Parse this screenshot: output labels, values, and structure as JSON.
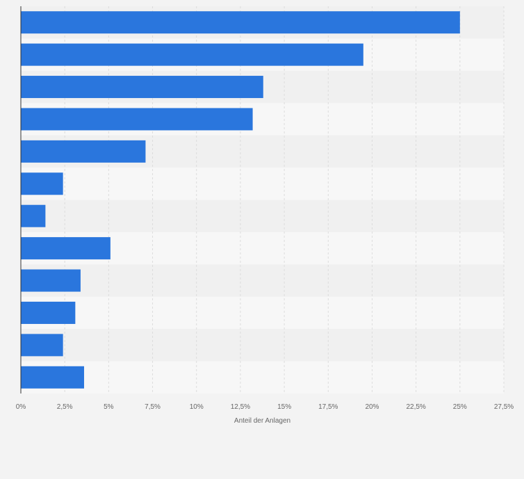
{
  "chart_data": {
    "type": "bar",
    "orientation": "horizontal",
    "title": "",
    "xlabel": "Anteil der Anlagen",
    "ylabel": "",
    "categories": [
      "",
      "",
      "",
      "",
      "",
      "",
      "",
      "",
      "",
      "",
      "",
      ""
    ],
    "values": [
      25.0,
      19.5,
      13.8,
      13.2,
      7.1,
      2.4,
      1.4,
      5.1,
      3.4,
      3.1,
      2.4,
      3.6
    ],
    "xlim": [
      0,
      27.5
    ],
    "xticks": [
      0,
      2.5,
      5,
      7.5,
      10,
      12.5,
      15,
      17.5,
      20,
      22.5,
      25,
      27.5
    ],
    "xtick_labels": [
      "0%",
      "2,5%",
      "5%",
      "7,5%",
      "10%",
      "12,5%",
      "15%",
      "17,5%",
      "20%",
      "22,5%",
      "25%",
      "27,5%"
    ],
    "grid": true,
    "legend": "none",
    "colors": {
      "bar": "#2a76dd",
      "band_dark": "#f0f0f0",
      "band_light": "#f7f7f7",
      "grid": "#dcdcdc",
      "axis": "#333333",
      "text": "#666666"
    }
  }
}
